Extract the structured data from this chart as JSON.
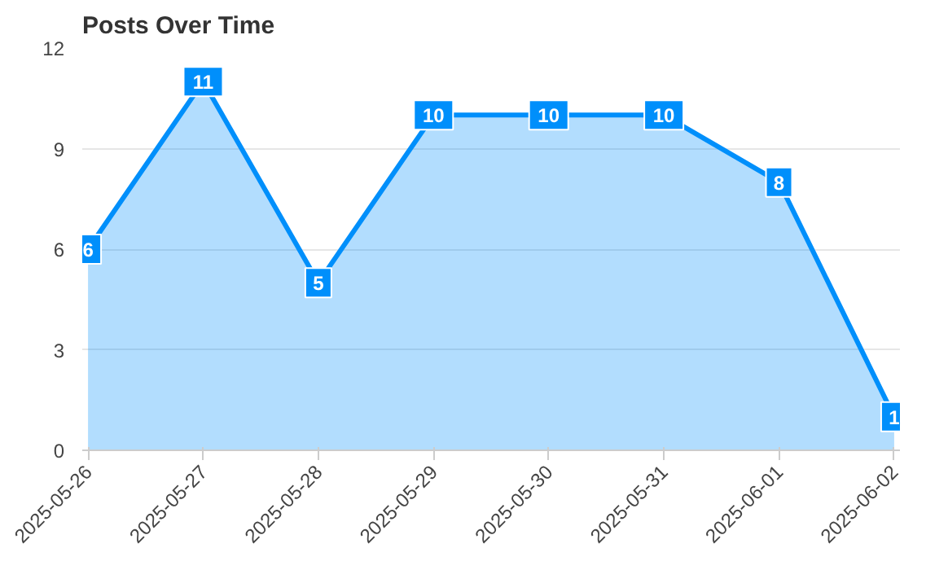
{
  "chart_data": {
    "type": "area",
    "title": "Posts Over Time",
    "categories": [
      "2025-05-26",
      "2025-05-27",
      "2025-05-28",
      "2025-05-29",
      "2025-05-30",
      "2025-05-31",
      "2025-06-01",
      "2025-06-02"
    ],
    "series": [
      {
        "color": "#008ffb",
        "values": [
          6,
          11,
          5,
          10,
          10,
          10,
          8,
          1
        ]
      }
    ],
    "ylim": [
      0,
      12
    ],
    "yticks": [
      0,
      3,
      6,
      9,
      12
    ],
    "grid": "y",
    "data_labels": true,
    "line_style": "solid"
  }
}
